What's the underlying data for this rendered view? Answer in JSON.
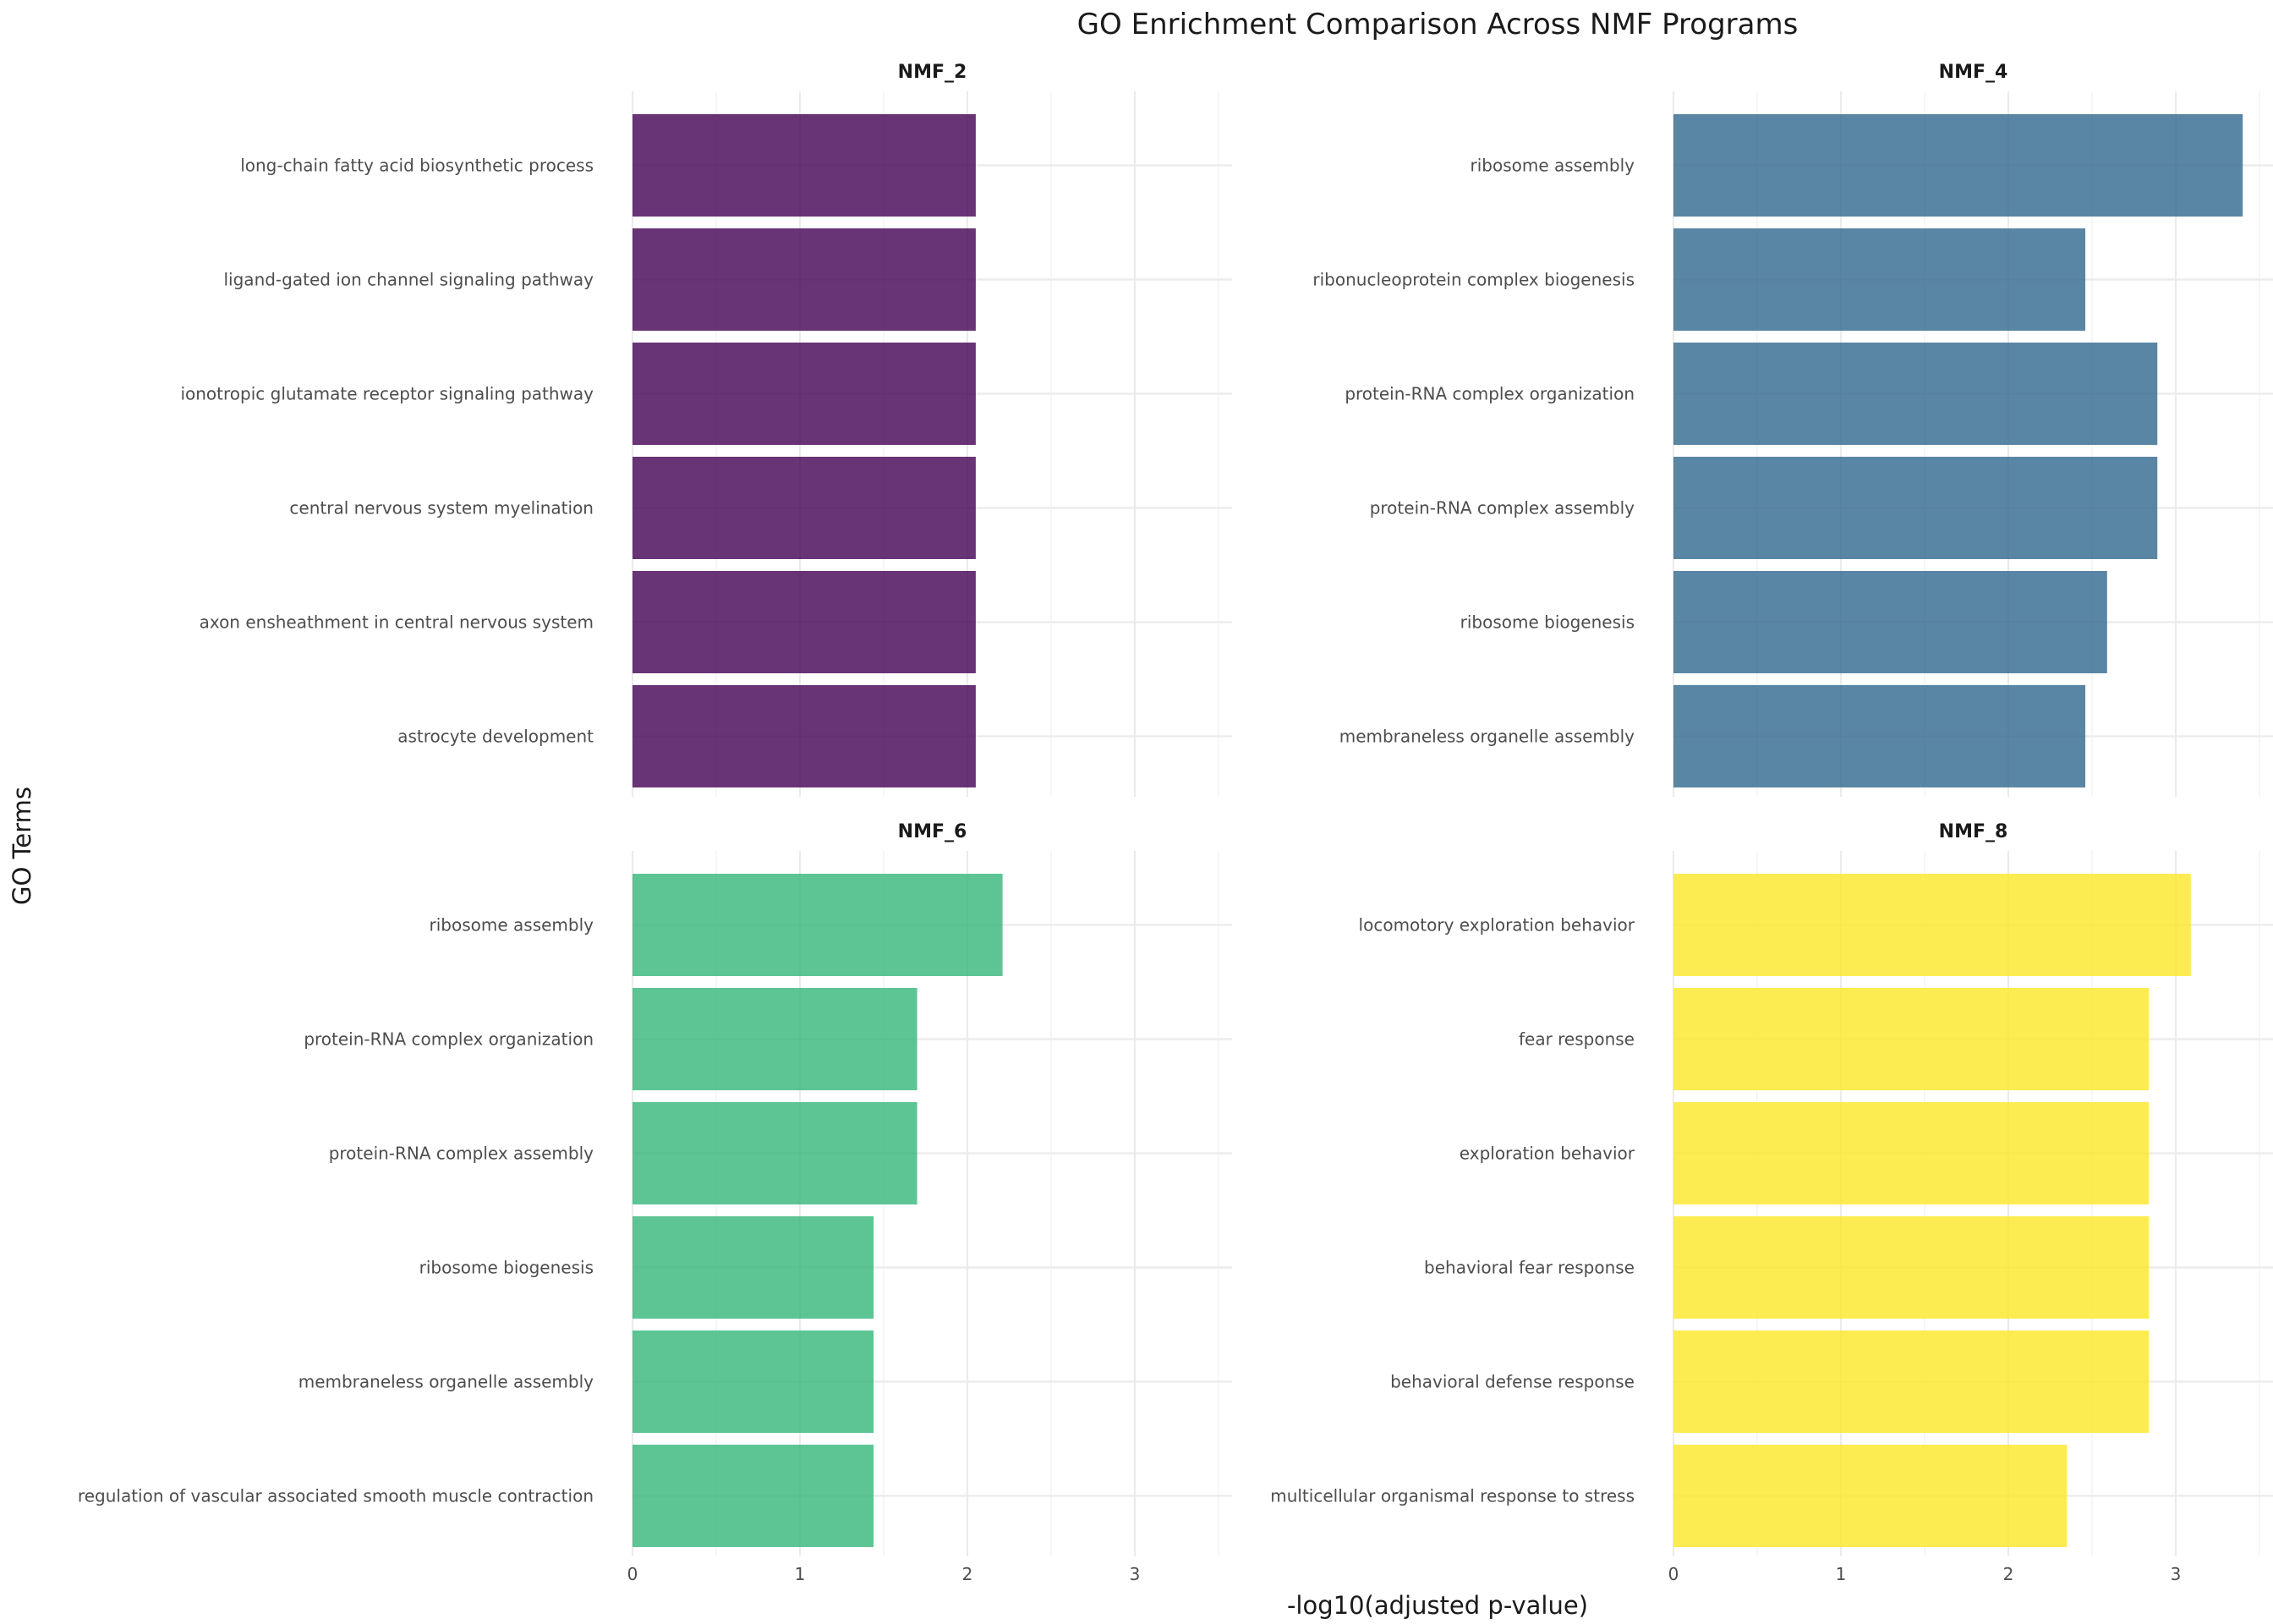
{
  "title": "GO Enrichment Comparison Across NMF Programs",
  "xlabel": "-log10(adjusted p-value)",
  "ylabel": "GO Terms",
  "chart_data": {
    "type": "bar",
    "orientation": "horizontal",
    "title": "GO Enrichment Comparison Across NMF Programs",
    "xlabel": "-log10(adjusted p-value)",
    "ylabel": "GO Terms",
    "xlim": [
      0,
      3.55
    ],
    "xticks": [
      0,
      1,
      2,
      3
    ],
    "grid": true,
    "legend": "none",
    "panels": [
      {
        "name": "NMF_2",
        "color": "#440154",
        "categories": [
          "long-chain fatty acid biosynthetic process",
          "ligand-gated ion channel signaling pathway",
          "ionotropic glutamate receptor signaling pathway",
          "central nervous system myelination",
          "axon ensheathment in central nervous system",
          "astrocyte development"
        ],
        "values": [
          2.05,
          2.05,
          2.05,
          2.05,
          2.05,
          2.05
        ]
      },
      {
        "name": "NMF_4",
        "color": "#31688E",
        "categories": [
          "ribosome assembly",
          "ribonucleoprotein complex biogenesis",
          "protein-RNA complex organization",
          "protein-RNA complex assembly",
          "ribosome biogenesis",
          "membraneless organelle assembly"
        ],
        "values": [
          3.4,
          2.46,
          2.89,
          2.89,
          2.59,
          2.46
        ]
      },
      {
        "name": "NMF_6",
        "color": "#35B779",
        "categories": [
          "ribosome assembly",
          "protein-RNA complex organization",
          "protein-RNA complex assembly",
          "ribosome biogenesis",
          "membraneless organelle assembly",
          "regulation of vascular associated smooth muscle contraction"
        ],
        "values": [
          2.21,
          1.7,
          1.7,
          1.44,
          1.44,
          1.44
        ]
      },
      {
        "name": "NMF_8",
        "color": "#FDE725",
        "categories": [
          "locomotory exploration behavior",
          "fear response",
          "exploration behavior",
          "behavioral fear response",
          "behavioral defense response",
          "multicellular organismal response to stress"
        ],
        "values": [
          3.09,
          2.84,
          2.84,
          2.84,
          2.84,
          2.35
        ]
      }
    ]
  }
}
